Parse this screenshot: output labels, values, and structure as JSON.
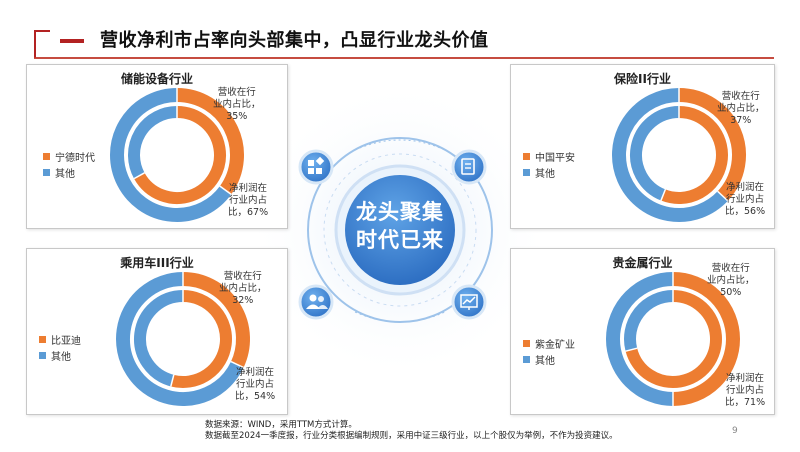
{
  "slide": {
    "title": "营收净利市占率向头部集中，凸显行业龙头价值",
    "center_line1": "龙头聚集",
    "center_line2": "时代已来",
    "source_line1": "数据来源：WIND，采用TTM方式计算。",
    "source_line2": "数据截至2024一季度报，行业分类根据编制规则，采用中证三级行业，以上个股仅为举例，不作为投资建议。",
    "page_number": "9"
  },
  "colors": {
    "leader": "#ed7d31",
    "others": "#5b9bd5",
    "accent": "#b32222"
  },
  "icons": [
    "grid-icon",
    "document-icon",
    "users-icon",
    "chart-icon"
  ],
  "panels": [
    {
      "id": "energy-storage",
      "title": "储能设备行业",
      "legend": [
        "宁德时代",
        "其他"
      ],
      "revenue_label": "营收在行业内占比，35%",
      "revenue_label_l1": "营收在行",
      "revenue_label_l2": "业内占比，",
      "revenue_label_l3": "35%",
      "profit_label_l1": "净利润在",
      "profit_label_l2": "行业内占",
      "profit_label_l3": "比，67%",
      "revenue_share": 0.35,
      "profit_share": 0.67
    },
    {
      "id": "insurance",
      "title": "保险II行业",
      "legend": [
        "中国平安",
        "其他"
      ],
      "revenue_label_l1": "营收在行",
      "revenue_label_l2": "业内占比，",
      "revenue_label_l3": "37%",
      "profit_label_l1": "净利润在",
      "profit_label_l2": "行业内占",
      "profit_label_l3": "比，56%",
      "revenue_share": 0.37,
      "profit_share": 0.56
    },
    {
      "id": "passenger-car",
      "title": "乘用车III行业",
      "legend": [
        "比亚迪",
        "其他"
      ],
      "revenue_label_l1": "营收在行",
      "revenue_label_l2": "业内占比，",
      "revenue_label_l3": "32%",
      "profit_label_l1": "净利润在",
      "profit_label_l2": "行业内占",
      "profit_label_l3": "比，54%",
      "revenue_share": 0.32,
      "profit_share": 0.54
    },
    {
      "id": "precious-metals",
      "title": "贵金属行业",
      "legend": [
        "紫金矿业",
        "其他"
      ],
      "revenue_label_l1": "营收在行",
      "revenue_label_l2": "业内占比，",
      "revenue_label_l3": "50%",
      "profit_label_l1": "净利润在",
      "profit_label_l2": "行业内占",
      "profit_label_l3": "比，71%",
      "revenue_share": 0.5,
      "profit_share": 0.71
    }
  ]
}
